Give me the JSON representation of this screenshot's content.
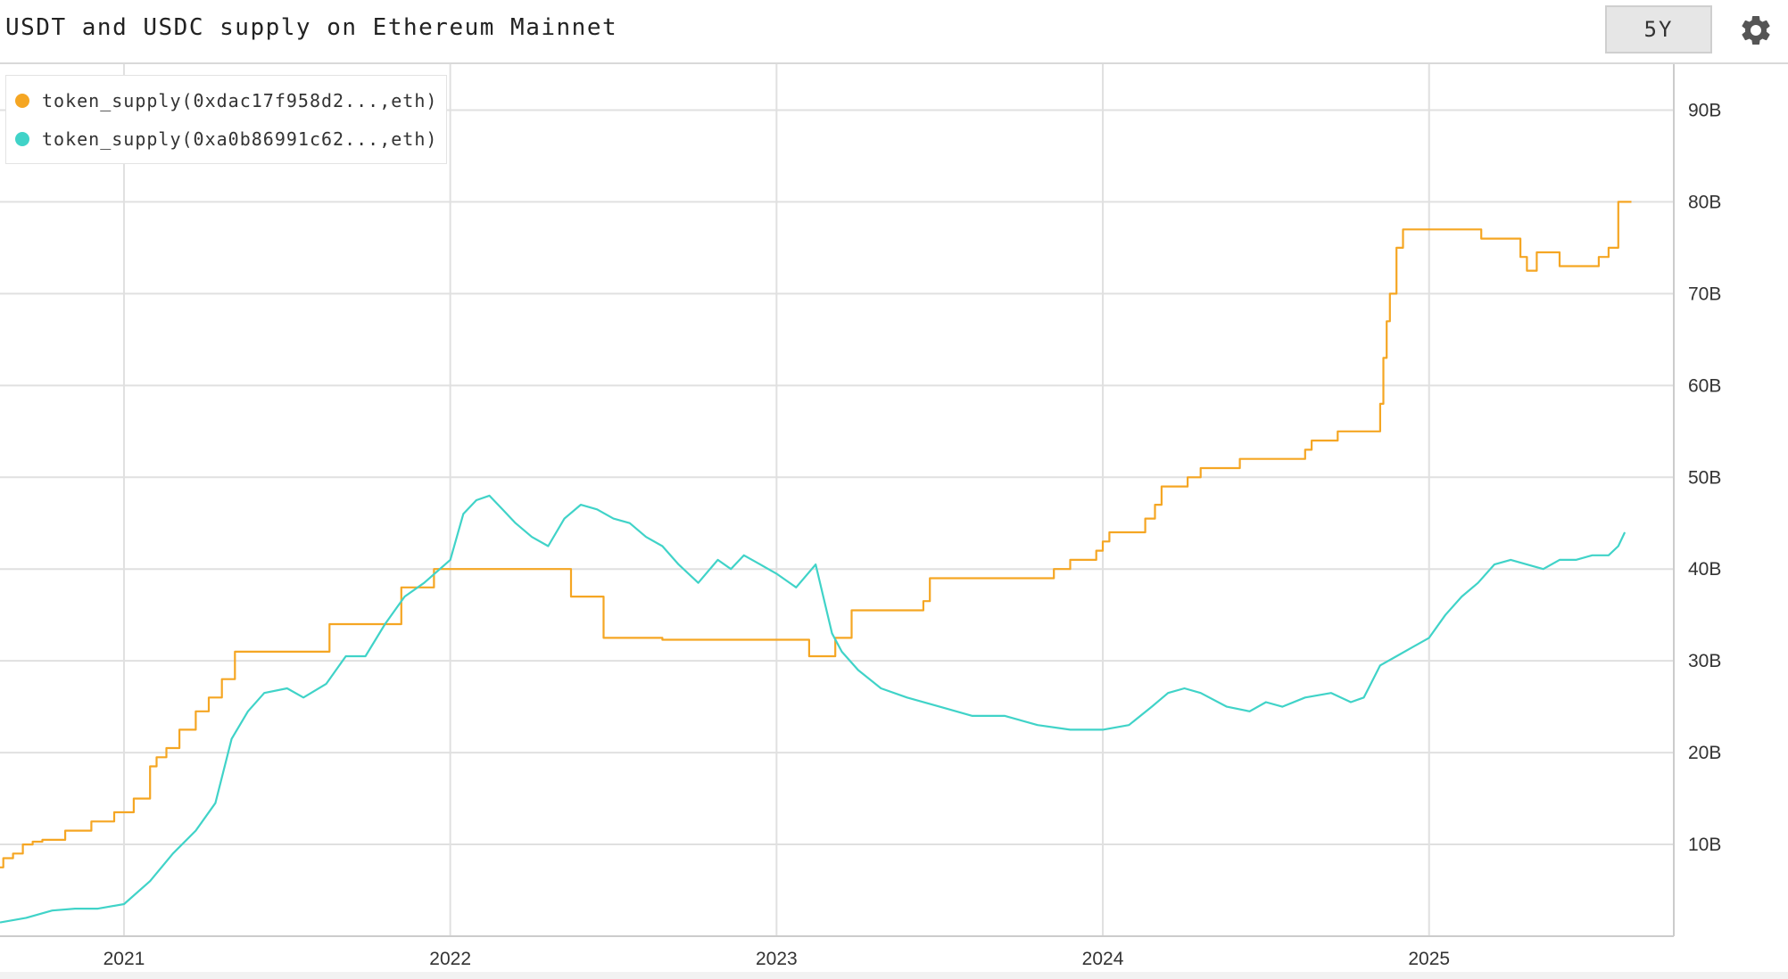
{
  "header": {
    "title": "USDT and USDC supply on Ethereum Mainnet",
    "range_label": "5Y",
    "settings_icon": "gear-icon"
  },
  "colors": {
    "usdt": "#f5a623",
    "usdc": "#40d3c8",
    "grid": "#e0e0e0",
    "axis_text": "#333333"
  },
  "chart_data": {
    "type": "line",
    "title": "USDT and USDC supply on Ethereum Mainnet",
    "xlabel": "",
    "ylabel": "",
    "xlim": [
      2020.62,
      2025.75
    ],
    "ylim": [
      0,
      95
    ],
    "x_ticks": [
      2021,
      2022,
      2023,
      2024,
      2025
    ],
    "x_tick_labels": [
      "2021",
      "2022",
      "2023",
      "2024",
      "2025"
    ],
    "y_ticks": [
      10,
      20,
      30,
      40,
      50,
      60,
      70,
      80,
      90
    ],
    "y_tick_labels": [
      "10B",
      "20B",
      "30B",
      "40B",
      "50B",
      "60B",
      "70B",
      "80B",
      "90B"
    ],
    "grid": true,
    "legend_position": "top-left",
    "series": [
      {
        "name": "token_supply(0xdac17f958d2...,eth)",
        "color": "#f5a623",
        "step": true,
        "x": [
          2020.62,
          2020.63,
          2020.66,
          2020.69,
          2020.72,
          2020.75,
          2020.82,
          2020.9,
          2020.97,
          2021.03,
          2021.08,
          2021.1,
          2021.13,
          2021.17,
          2021.22,
          2021.26,
          2021.3,
          2021.34,
          2021.37,
          2021.41,
          2021.63,
          2021.65,
          2021.85,
          2021.87,
          2021.95,
          2022.37,
          2022.47,
          2022.65,
          2023.1,
          2023.18,
          2023.23,
          2023.45,
          2023.47,
          2023.85,
          2023.9,
          2023.98,
          2024.0,
          2024.02,
          2024.13,
          2024.16,
          2024.18,
          2024.26,
          2024.3,
          2024.42,
          2024.62,
          2024.64,
          2024.72,
          2024.84,
          2024.85,
          2024.86,
          2024.87,
          2024.88,
          2024.9,
          2024.92,
          2024.96,
          2025.16,
          2025.17,
          2025.28,
          2025.3,
          2025.33,
          2025.4,
          2025.47,
          2025.52,
          2025.55,
          2025.58,
          2025.62
        ],
        "y": [
          7.5,
          8.5,
          9.0,
          10.0,
          10.3,
          10.5,
          11.5,
          12.5,
          13.5,
          15.0,
          18.5,
          19.5,
          20.5,
          22.5,
          24.5,
          26.0,
          28.0,
          31.0,
          31.0,
          31.0,
          34.0,
          34.0,
          38.0,
          38.0,
          40.0,
          37.0,
          32.5,
          32.3,
          30.5,
          32.5,
          35.5,
          36.5,
          39.0,
          40.0,
          41.0,
          42.0,
          43.0,
          44.0,
          45.5,
          47.0,
          49.0,
          50.0,
          51.0,
          52.0,
          53.0,
          54.0,
          55.0,
          55.0,
          58.0,
          63.0,
          67.0,
          70.0,
          75.0,
          77.0,
          77.0,
          76.0,
          76.0,
          74.0,
          72.5,
          74.5,
          73.0,
          73.0,
          74.0,
          75.0,
          80.0,
          80.0
        ]
      },
      {
        "name": "token_supply(0xa0b86991c62...,eth)",
        "color": "#40d3c8",
        "step": false,
        "x": [
          2020.62,
          2020.7,
          2020.78,
          2020.85,
          2020.92,
          2021.0,
          2021.08,
          2021.15,
          2021.22,
          2021.28,
          2021.33,
          2021.38,
          2021.43,
          2021.5,
          2021.55,
          2021.62,
          2021.68,
          2021.74,
          2021.8,
          2021.86,
          2021.92,
          2022.0,
          2022.04,
          2022.08,
          2022.12,
          2022.16,
          2022.2,
          2022.25,
          2022.3,
          2022.35,
          2022.4,
          2022.45,
          2022.5,
          2022.55,
          2022.6,
          2022.65,
          2022.7,
          2022.76,
          2022.82,
          2022.86,
          2022.9,
          2022.95,
          2023.0,
          2023.06,
          2023.12,
          2023.17,
          2023.2,
          2023.25,
          2023.32,
          2023.4,
          2023.5,
          2023.6,
          2023.7,
          2023.8,
          2023.9,
          2024.0,
          2024.08,
          2024.15,
          2024.2,
          2024.25,
          2024.3,
          2024.38,
          2024.45,
          2024.5,
          2024.55,
          2024.62,
          2024.7,
          2024.76,
          2024.8,
          2024.85,
          2024.9,
          2024.95,
          2025.0,
          2025.05,
          2025.1,
          2025.15,
          2025.2,
          2025.25,
          2025.3,
          2025.35,
          2025.4,
          2025.45,
          2025.5,
          2025.55,
          2025.58,
          2025.6
        ],
        "y": [
          1.5,
          2.0,
          2.8,
          3.0,
          3.0,
          3.5,
          6.0,
          9.0,
          11.5,
          14.5,
          21.5,
          24.5,
          26.5,
          27.0,
          26.0,
          27.5,
          30.5,
          30.5,
          34.0,
          37.0,
          38.5,
          41.0,
          46.0,
          47.5,
          48.0,
          46.5,
          45.0,
          43.5,
          42.5,
          45.5,
          47.0,
          46.5,
          45.5,
          45.0,
          43.5,
          42.5,
          40.5,
          38.5,
          41.0,
          40.0,
          41.5,
          40.5,
          39.5,
          38.0,
          40.5,
          33.0,
          31.0,
          29.0,
          27.0,
          26.0,
          25.0,
          24.0,
          24.0,
          23.0,
          22.5,
          22.5,
          23.0,
          25.0,
          26.5,
          27.0,
          26.5,
          25.0,
          24.5,
          25.5,
          25.0,
          26.0,
          26.5,
          25.5,
          26.0,
          29.5,
          30.5,
          31.5,
          32.5,
          35.0,
          37.0,
          38.5,
          40.5,
          41.0,
          40.5,
          40.0,
          41.0,
          41.0,
          41.5,
          41.5,
          42.5,
          44.0
        ]
      }
    ]
  }
}
